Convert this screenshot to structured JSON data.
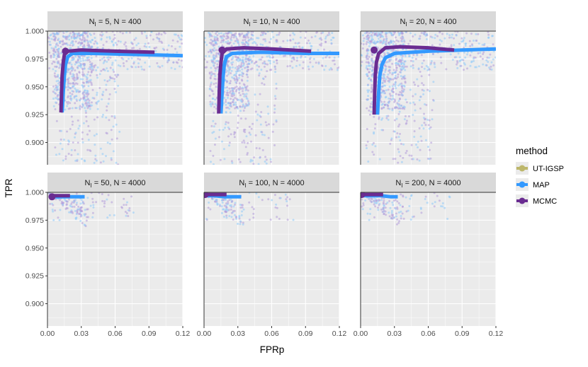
{
  "chart_data": {
    "type": "scatter",
    "xlabel": "FPRp",
    "ylabel": "TPR",
    "xlim": [
      0,
      0.12
    ],
    "ylim": [
      0.88,
      1.0
    ],
    "xticks": [
      0.0,
      0.03,
      0.06,
      0.09,
      0.12
    ],
    "xtick_labels": [
      "0.00",
      "0.03",
      "0.06",
      "0.09",
      "0.12"
    ],
    "yticks": [
      0.9,
      0.925,
      0.95,
      0.975,
      1.0
    ],
    "ytick_labels": [
      "0.900",
      "0.925",
      "0.950",
      "0.975",
      "1.000"
    ],
    "grid": true,
    "legend": {
      "title": "method",
      "placement": "right",
      "entries": [
        {
          "name": "UT-IGSP",
          "color": "#bdb76b"
        },
        {
          "name": "MAP",
          "color": "#3399ff"
        },
        {
          "name": "MCMC",
          "color": "#6a2c91"
        }
      ]
    },
    "panels": [
      {
        "label_parts": [
          "N",
          "I",
          " = 5, N = 400"
        ],
        "row": 0,
        "col": 0,
        "series": [
          {
            "name": "MAP",
            "x": [
              0.013,
              0.014,
              0.015,
              0.016,
              0.018,
              0.022,
              0.04,
              0.08,
              0.12
            ],
            "y": [
              0.927,
              0.945,
              0.96,
              0.97,
              0.977,
              0.98,
              0.98,
              0.979,
              0.978
            ]
          },
          {
            "name": "MCMC",
            "x": [
              0.012,
              0.0125,
              0.013,
              0.014,
              0.015,
              0.018,
              0.03,
              0.06,
              0.095
            ],
            "y": [
              0.927,
              0.945,
              0.96,
              0.972,
              0.979,
              0.982,
              0.983,
              0.982,
              0.981
            ]
          },
          {
            "name": "UT-IGSP",
            "x": [
              0.016
            ],
            "y": [
              0.982
            ]
          }
        ]
      },
      {
        "label_parts": [
          "N",
          "I",
          " = 10, N = 400"
        ],
        "row": 0,
        "col": 1,
        "series": [
          {
            "name": "MAP",
            "x": [
              0.015,
              0.016,
              0.017,
              0.018,
              0.02,
              0.025,
              0.05,
              0.09,
              0.12
            ],
            "y": [
              0.926,
              0.945,
              0.96,
              0.97,
              0.977,
              0.98,
              0.981,
              0.98,
              0.98
            ]
          },
          {
            "name": "MCMC",
            "x": [
              0.013,
              0.0135,
              0.014,
              0.015,
              0.016,
              0.02,
              0.035,
              0.06,
              0.095
            ],
            "y": [
              0.926,
              0.945,
              0.96,
              0.972,
              0.98,
              0.984,
              0.985,
              0.984,
              0.982
            ]
          },
          {
            "name": "UT-IGSP",
            "x": [
              0.016
            ],
            "y": [
              0.983
            ]
          }
        ]
      },
      {
        "label_parts": [
          "N",
          "I",
          " = 20, N = 400"
        ],
        "row": 0,
        "col": 2,
        "series": [
          {
            "name": "MAP",
            "x": [
              0.015,
              0.016,
              0.017,
              0.019,
              0.022,
              0.03,
              0.06,
              0.09,
              0.12
            ],
            "y": [
              0.925,
              0.945,
              0.96,
              0.97,
              0.976,
              0.98,
              0.982,
              0.983,
              0.984
            ]
          },
          {
            "name": "MCMC",
            "x": [
              0.012,
              0.0125,
              0.013,
              0.014,
              0.016,
              0.022,
              0.035,
              0.06,
              0.083
            ],
            "y": [
              0.925,
              0.945,
              0.96,
              0.972,
              0.98,
              0.985,
              0.986,
              0.985,
              0.983
            ]
          },
          {
            "name": "UT-IGSP",
            "x": [
              0.012
            ],
            "y": [
              0.983
            ]
          }
        ]
      },
      {
        "label_parts": [
          "N",
          "I",
          " = 50, N = 4000"
        ],
        "row": 1,
        "col": 0,
        "series": [
          {
            "name": "MAP",
            "x": [
              0.004,
              0.008,
              0.015,
              0.025,
              0.033
            ],
            "y": [
              0.997,
              0.996,
              0.996,
              0.996,
              0.996
            ]
          },
          {
            "name": "MCMC",
            "x": [
              0.003,
              0.006,
              0.012,
              0.02
            ],
            "y": [
              0.996,
              0.997,
              0.997,
              0.997
            ]
          },
          {
            "name": "UT-IGSP",
            "x": [
              0.004
            ],
            "y": [
              0.996
            ]
          }
        ]
      },
      {
        "label_parts": [
          "N",
          "I",
          " = 100, N = 4000"
        ],
        "row": 1,
        "col": 1,
        "series": [
          {
            "name": "MAP",
            "x": [
              0.001,
              0.008,
              0.018,
              0.027,
              0.033
            ],
            "y": [
              0.997,
              0.997,
              0.996,
              0.996,
              0.996
            ]
          },
          {
            "name": "MCMC",
            "x": [
              0.001,
              0.006,
              0.014,
              0.02
            ],
            "y": [
              0.998,
              0.998,
              0.998,
              0.998
            ]
          },
          {
            "name": "UT-IGSP",
            "x": [
              0.001
            ],
            "y": [
              0.998
            ]
          }
        ]
      },
      {
        "label_parts": [
          "N",
          "I",
          " = 200, N = 4000"
        ],
        "row": 1,
        "col": 2,
        "series": [
          {
            "name": "MAP",
            "x": [
              0.001,
              0.008,
              0.018,
              0.027,
              0.033
            ],
            "y": [
              0.997,
              0.997,
              0.997,
              0.996,
              0.996
            ]
          },
          {
            "name": "MCMC",
            "x": [
              0.001,
              0.006,
              0.014,
              0.02
            ],
            "y": [
              0.998,
              0.998,
              0.998,
              0.998
            ]
          },
          {
            "name": "UT-IGSP",
            "x": [
              0.001
            ],
            "y": [
              0.998
            ]
          }
        ]
      }
    ]
  }
}
